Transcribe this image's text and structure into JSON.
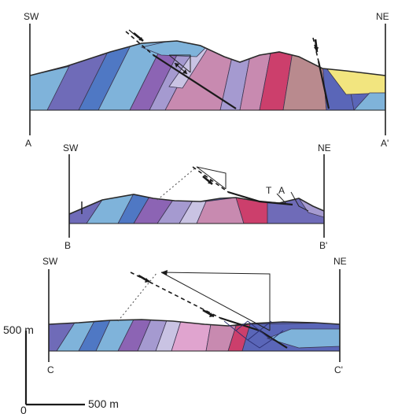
{
  "colors": {
    "dark_violet": "#6f6bb8",
    "slate_blue": "#5a66b8",
    "sky_blue": "#7fb3da",
    "medium_blue": "#4f78c4",
    "lavender": "#a59ad0",
    "pale_lilac": "#c9c3e3",
    "mauve_pink": "#c88ab0",
    "pink": "#e0a4cf",
    "crimson": "#cc3f6c",
    "dusty_rose": "#b98a8e",
    "yellow": "#f2e57f",
    "purple": "#8c64b4"
  },
  "sections": [
    {
      "id": "A",
      "sw_label": "SW",
      "ne_label": "NE",
      "start_label": "A",
      "end_label": "A'"
    },
    {
      "id": "B",
      "sw_label": "SW",
      "ne_label": "NE",
      "start_label": "B",
      "end_label": "B'"
    },
    {
      "id": "C",
      "sw_label": "SW",
      "ne_label": "NE",
      "start_label": "C",
      "end_label": "C'"
    }
  ],
  "section_b_marks": {
    "mark_1": "T",
    "mark_2": "A"
  },
  "scale": {
    "vertical_label": "500 m",
    "horizontal_label": "500 m",
    "origin_label": "0"
  }
}
